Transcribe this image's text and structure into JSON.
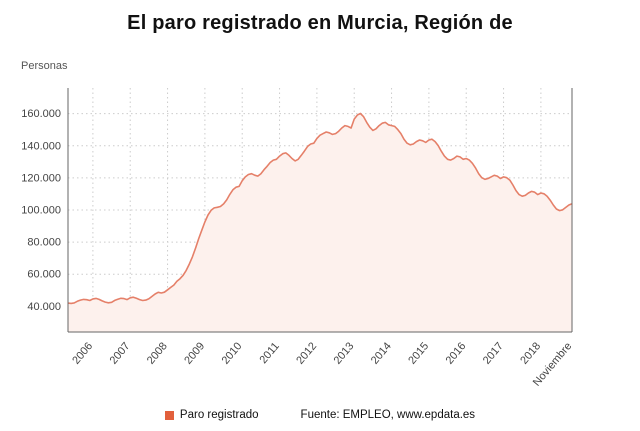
{
  "title": "El paro registrado en Murcia, Región de",
  "y_axis_title": "Personas",
  "legend": {
    "series_label": "Paro registrado",
    "source": "Fuente: EMPLEO, www.epdata.es"
  },
  "colors": {
    "line": "#e58069",
    "area": "#fdf1ed",
    "legend_marker": "#e2603c",
    "grid": "#cccccc",
    "axis": "#666666",
    "tick_text": "#444444"
  },
  "chart_data": {
    "type": "area",
    "series_name": "Paro registrado",
    "x_start": "2005-05",
    "x_end": "2018-11",
    "x_tick_labels": [
      "2006",
      "2007",
      "2008",
      "2009",
      "2010",
      "2011",
      "2012",
      "2013",
      "2014",
      "2015",
      "2016",
      "2017",
      "2018",
      "Noviembre"
    ],
    "y_ticks": [
      40000,
      60000,
      80000,
      100000,
      120000,
      140000,
      160000
    ],
    "ylim": [
      24000,
      176000
    ],
    "ylabel": "Personas",
    "grid": "dotted",
    "legend_position": "bottom",
    "values": [
      42000,
      41800,
      42100,
      43100,
      43900,
      44300,
      44100,
      43600,
      44600,
      44900,
      44300,
      43400,
      42600,
      42200,
      42500,
      43700,
      44400,
      45000,
      44800,
      44200,
      45300,
      45700,
      45000,
      44200,
      43600,
      43900,
      44700,
      46200,
      47700,
      48700,
      48300,
      48800,
      50300,
      51800,
      53200,
      55600,
      57200,
      59300,
      62400,
      66300,
      70800,
      76300,
      82200,
      87400,
      92600,
      96900,
      99800,
      101300,
      101700,
      102200,
      103800,
      106300,
      109700,
      112600,
      114200,
      114700,
      118200,
      120600,
      122100,
      122600,
      121700,
      121100,
      122600,
      125100,
      127200,
      129600,
      131100,
      131600,
      133600,
      135100,
      135600,
      134100,
      132100,
      130600,
      131600,
      134100,
      136700,
      139600,
      141100,
      141600,
      144600,
      146600,
      147600,
      148600,
      148100,
      147100,
      147600,
      149100,
      151100,
      152600,
      152100,
      151100,
      156600,
      159100,
      160100,
      158100,
      154600,
      151600,
      149600,
      150600,
      152600,
      154100,
      154600,
      153100,
      152600,
      152100,
      150100,
      147600,
      144100,
      141600,
      140600,
      141100,
      142600,
      143600,
      143100,
      142100,
      143600,
      144100,
      142600,
      140100,
      136600,
      133600,
      131600,
      131100,
      132100,
      133600,
      133100,
      131600,
      132100,
      131100,
      129100,
      126100,
      122600,
      120100,
      119100,
      119600,
      120600,
      121600,
      121100,
      119600,
      120600,
      120100,
      118600,
      115600,
      112100,
      109600,
      108600,
      109100,
      110600,
      111600,
      111100,
      109600,
      110600,
      110100,
      108600,
      106100,
      103100,
      100600,
      99600,
      100100,
      101600,
      103100,
      103900
    ]
  }
}
